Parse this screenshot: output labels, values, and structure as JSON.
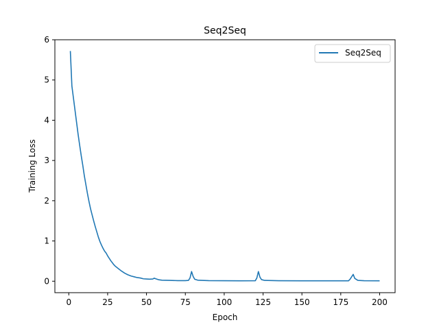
{
  "chart_data": {
    "type": "line",
    "title": "Seq2Seq",
    "xlabel": "Epoch",
    "ylabel": "Training Loss",
    "xlim": [
      -8.95,
      209.95
    ],
    "ylim": [
      -0.285,
      6.0
    ],
    "xticks": [
      0,
      25,
      50,
      75,
      100,
      125,
      150,
      175,
      200
    ],
    "yticks": [
      0,
      1,
      2,
      3,
      4,
      5,
      6
    ],
    "grid": false,
    "legend_position": "top-right",
    "series": [
      {
        "name": "Seq2Seq",
        "color": "#1f77b4",
        "points": [
          [
            1,
            5.72
          ],
          [
            2,
            4.85
          ],
          [
            3,
            4.55
          ],
          [
            4,
            4.25
          ],
          [
            5,
            3.95
          ],
          [
            6,
            3.65
          ],
          [
            7,
            3.38
          ],
          [
            8,
            3.12
          ],
          [
            9,
            2.88
          ],
          [
            10,
            2.62
          ],
          [
            11,
            2.4
          ],
          [
            12,
            2.18
          ],
          [
            13,
            1.98
          ],
          [
            14,
            1.8
          ],
          [
            15,
            1.65
          ],
          [
            16,
            1.5
          ],
          [
            17,
            1.36
          ],
          [
            18,
            1.23
          ],
          [
            19,
            1.1
          ],
          [
            20,
            0.99
          ],
          [
            21,
            0.9
          ],
          [
            22,
            0.82
          ],
          [
            23,
            0.75
          ],
          [
            24,
            0.7
          ],
          [
            25,
            0.63
          ],
          [
            26,
            0.57
          ],
          [
            27,
            0.51
          ],
          [
            28,
            0.46
          ],
          [
            29,
            0.41
          ],
          [
            30,
            0.37
          ],
          [
            32,
            0.31
          ],
          [
            34,
            0.25
          ],
          [
            36,
            0.2
          ],
          [
            38,
            0.16
          ],
          [
            40,
            0.13
          ],
          [
            42,
            0.11
          ],
          [
            44,
            0.09
          ],
          [
            46,
            0.08
          ],
          [
            48,
            0.06
          ],
          [
            50,
            0.055
          ],
          [
            52,
            0.05
          ],
          [
            54,
            0.055
          ],
          [
            55,
            0.075
          ],
          [
            56,
            0.06
          ],
          [
            58,
            0.035
          ],
          [
            60,
            0.025
          ],
          [
            65,
            0.02
          ],
          [
            70,
            0.015
          ],
          [
            75,
            0.015
          ],
          [
            77,
            0.02
          ],
          [
            78,
            0.08
          ],
          [
            79,
            0.24
          ],
          [
            80,
            0.12
          ],
          [
            81,
            0.05
          ],
          [
            83,
            0.025
          ],
          [
            90,
            0.015
          ],
          [
            100,
            0.012
          ],
          [
            110,
            0.01
          ],
          [
            120,
            0.012
          ],
          [
            121,
            0.08
          ],
          [
            122,
            0.24
          ],
          [
            123,
            0.1
          ],
          [
            124,
            0.04
          ],
          [
            126,
            0.02
          ],
          [
            135,
            0.012
          ],
          [
            150,
            0.01
          ],
          [
            165,
            0.01
          ],
          [
            180,
            0.01
          ],
          [
            181,
            0.05
          ],
          [
            182,
            0.11
          ],
          [
            183,
            0.17
          ],
          [
            184,
            0.07
          ],
          [
            186,
            0.02
          ],
          [
            190,
            0.012
          ],
          [
            200,
            0.01
          ]
        ]
      }
    ]
  }
}
